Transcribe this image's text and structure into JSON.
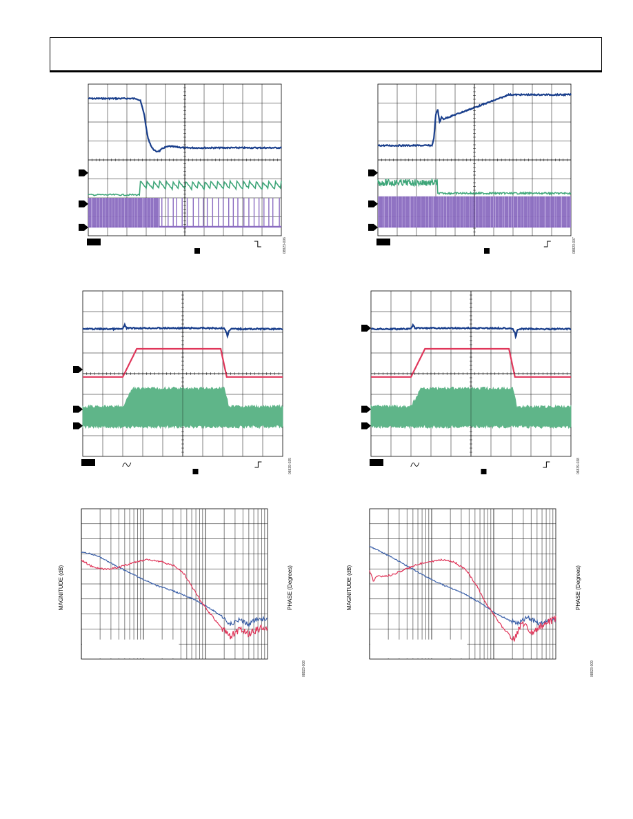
{
  "charts": [
    {
      "id": "scope-tl",
      "type": "scope",
      "fig_id": "08823-006",
      "trigger": "fall",
      "markers": [
        {
          "level": 0.585,
          "color": "#000000"
        },
        {
          "level": 0.79,
          "color": "#000000"
        },
        {
          "level": 0.945,
          "color": "#000000"
        }
      ],
      "traces": [
        {
          "name": "",
          "color": "#1a3f8c",
          "kind": "line",
          "points": [
            [
              0,
              0.095
            ],
            [
              0.25,
              0.095
            ],
            [
              0.27,
              0.11
            ],
            [
              0.29,
              0.2
            ],
            [
              0.3,
              0.29
            ],
            [
              0.31,
              0.36
            ],
            [
              0.33,
              0.42
            ],
            [
              0.35,
              0.445
            ],
            [
              0.37,
              0.44
            ],
            [
              0.39,
              0.42
            ],
            [
              0.42,
              0.41
            ],
            [
              0.5,
              0.42
            ],
            [
              1,
              0.42
            ]
          ],
          "noise": 0.004
        },
        {
          "name": "",
          "color": "#3da578",
          "kind": "sawtooth",
          "base": 0.73,
          "high": 0.64,
          "start": 0.27,
          "teeth": 22,
          "noise": 0.004
        },
        {
          "name": "",
          "color": "#8a6bc0",
          "kind": "pulses",
          "top": 0.75,
          "bottom": 0.945,
          "dense_until": 0.37,
          "count": 24
        }
      ]
    },
    {
      "id": "scope-tr",
      "type": "scope",
      "fig_id": "08823-007",
      "trigger": "rise",
      "markers": [
        {
          "level": 0.585,
          "color": "#000000"
        },
        {
          "level": 0.79,
          "color": "#000000"
        },
        {
          "level": 0.945,
          "color": "#000000"
        }
      ],
      "traces": [
        {
          "name": "",
          "color": "#1a3f8c",
          "kind": "line",
          "points": [
            [
              0,
              0.405
            ],
            [
              0.28,
              0.405
            ],
            [
              0.29,
              0.36
            ],
            [
              0.3,
              0.2
            ],
            [
              0.31,
              0.17
            ],
            [
              0.32,
              0.25
            ],
            [
              0.33,
              0.22
            ],
            [
              0.34,
              0.23
            ],
            [
              0.66,
              0.08
            ],
            [
              0.67,
              0.07
            ],
            [
              1,
              0.07
            ]
          ],
          "noise": 0.004
        },
        {
          "name": "",
          "color": "#3da578",
          "kind": "step",
          "a": 0.65,
          "b": 0.72,
          "at": 0.31,
          "noise": 0.014
        },
        {
          "name": "",
          "color": "#8a6bc0",
          "kind": "pulses",
          "top": 0.74,
          "bottom": 0.945,
          "dense_until": 1.0,
          "count": 0
        }
      ]
    },
    {
      "id": "scope-ml",
      "type": "scope",
      "fig_id": "08839-035",
      "trigger": "rise",
      "inline_marker": true,
      "markers": [
        {
          "level": 0.475,
          "color": "#000000"
        },
        {
          "level": 0.715,
          "color": "#000000"
        },
        {
          "level": 0.815,
          "color": "#000000"
        }
      ],
      "traces": [
        {
          "name": "",
          "color": "#1a3f8c",
          "kind": "line",
          "points": [
            [
              0,
              0.23
            ],
            [
              0.2,
              0.23
            ],
            [
              0.21,
              0.205
            ],
            [
              0.22,
              0.225
            ],
            [
              0.7,
              0.225
            ],
            [
              0.71,
              0.23
            ],
            [
              0.72,
              0.255
            ],
            [
              0.725,
              0.28
            ],
            [
              0.73,
              0.24
            ],
            [
              0.74,
              0.23
            ],
            [
              1,
              0.23
            ]
          ],
          "noise": 0.004
        },
        {
          "name": "",
          "color": "#e0365a",
          "kind": "line",
          "points": [
            [
              0,
              0.52
            ],
            [
              0.2,
              0.52
            ],
            [
              0.27,
              0.35
            ],
            [
              0.69,
              0.35
            ],
            [
              0.72,
              0.52
            ],
            [
              1,
              0.52
            ]
          ],
          "noise": 0.0
        },
        {
          "name": "",
          "color": "#5fb589",
          "kind": "band",
          "x0": 0.2,
          "x1": 0.72,
          "ramp": 0.05,
          "low_top": 0.7,
          "low_bottom": 0.82,
          "high_top": 0.59,
          "high_bottom": 0.82
        }
      ]
    },
    {
      "id": "scope-mr",
      "type": "scope",
      "fig_id": "08839-038",
      "trigger": "rise",
      "inline_marker": true,
      "markers": [
        {
          "level": 0.225,
          "color": "#000000"
        },
        {
          "level": 0.715,
          "color": "#000000"
        },
        {
          "level": 0.815,
          "color": "#000000"
        }
      ],
      "traces": [
        {
          "name": "",
          "color": "#1a3f8c",
          "kind": "line",
          "points": [
            [
              0,
              0.23
            ],
            [
              0.2,
              0.23
            ],
            [
              0.21,
              0.205
            ],
            [
              0.22,
              0.225
            ],
            [
              0.7,
              0.225
            ],
            [
              0.71,
              0.23
            ],
            [
              0.72,
              0.255
            ],
            [
              0.725,
              0.29
            ],
            [
              0.73,
              0.24
            ],
            [
              0.74,
              0.23
            ],
            [
              1,
              0.23
            ]
          ],
          "noise": 0.004
        },
        {
          "name": "",
          "color": "#e0365a",
          "kind": "line",
          "points": [
            [
              0,
              0.52
            ],
            [
              0.2,
              0.52
            ],
            [
              0.27,
              0.35
            ],
            [
              0.69,
              0.35
            ],
            [
              0.72,
              0.52
            ],
            [
              1,
              0.52
            ]
          ],
          "noise": 0.0
        },
        {
          "name": "",
          "color": "#5fb589",
          "kind": "band",
          "x0": 0.2,
          "x1": 0.72,
          "ramp": 0.05,
          "low_top": 0.7,
          "low_bottom": 0.82,
          "high_top": 0.59,
          "high_bottom": 0.82
        }
      ]
    },
    {
      "id": "bode-l",
      "type": "bode",
      "fig_id": "08823-008",
      "ylabel_left": "MAGNITUDE (dB)",
      "ylabel_right": "PHASE (Degrees)",
      "decades": 3,
      "magnitude": [
        [
          0,
          0.29
        ],
        [
          0.05,
          0.3
        ],
        [
          0.1,
          0.32
        ],
        [
          0.2,
          0.39
        ],
        [
          0.3,
          0.45
        ],
        [
          0.4,
          0.51
        ],
        [
          0.5,
          0.55
        ],
        [
          0.6,
          0.6
        ],
        [
          0.7,
          0.67
        ],
        [
          0.75,
          0.71
        ],
        [
          0.8,
          0.77
        ],
        [
          0.85,
          0.74
        ],
        [
          0.9,
          0.77
        ],
        [
          0.95,
          0.73
        ],
        [
          1,
          0.74
        ]
      ],
      "phase": [
        [
          0,
          0.34
        ],
        [
          0.05,
          0.38
        ],
        [
          0.1,
          0.4
        ],
        [
          0.15,
          0.4
        ],
        [
          0.2,
          0.39
        ],
        [
          0.25,
          0.37
        ],
        [
          0.3,
          0.35
        ],
        [
          0.35,
          0.34
        ],
        [
          0.42,
          0.35
        ],
        [
          0.5,
          0.38
        ],
        [
          0.55,
          0.43
        ],
        [
          0.6,
          0.53
        ],
        [
          0.65,
          0.63
        ],
        [
          0.7,
          0.71
        ],
        [
          0.75,
          0.79
        ],
        [
          0.8,
          0.85
        ],
        [
          0.85,
          0.8
        ],
        [
          0.9,
          0.84
        ],
        [
          0.95,
          0.8
        ],
        [
          1,
          0.78
        ]
      ]
    },
    {
      "id": "bode-r",
      "type": "bode",
      "fig_id": "08823-009",
      "ylabel_left": "MAGNITUDE (dB)",
      "ylabel_right": "PHASE (Degrees)",
      "decades": 3,
      "magnitude": [
        [
          0,
          0.25
        ],
        [
          0.05,
          0.28
        ],
        [
          0.1,
          0.31
        ],
        [
          0.2,
          0.38
        ],
        [
          0.3,
          0.45
        ],
        [
          0.4,
          0.51
        ],
        [
          0.5,
          0.56
        ],
        [
          0.6,
          0.63
        ],
        [
          0.68,
          0.7
        ],
        [
          0.75,
          0.74
        ],
        [
          0.8,
          0.76
        ],
        [
          0.85,
          0.72
        ],
        [
          0.9,
          0.76
        ],
        [
          0.95,
          0.75
        ],
        [
          1,
          0.74
        ]
      ],
      "phase": [
        [
          0,
          0.41
        ],
        [
          0.02,
          0.48
        ],
        [
          0.04,
          0.45
        ],
        [
          0.08,
          0.45
        ],
        [
          0.12,
          0.44
        ],
        [
          0.2,
          0.4
        ],
        [
          0.25,
          0.37
        ],
        [
          0.3,
          0.36
        ],
        [
          0.38,
          0.34
        ],
        [
          0.45,
          0.35
        ],
        [
          0.52,
          0.41
        ],
        [
          0.58,
          0.52
        ],
        [
          0.62,
          0.62
        ],
        [
          0.67,
          0.71
        ],
        [
          0.72,
          0.8
        ],
        [
          0.78,
          0.87
        ],
        [
          0.82,
          0.75
        ],
        [
          0.87,
          0.82
        ],
        [
          0.92,
          0.78
        ],
        [
          1,
          0.73
        ]
      ]
    }
  ]
}
